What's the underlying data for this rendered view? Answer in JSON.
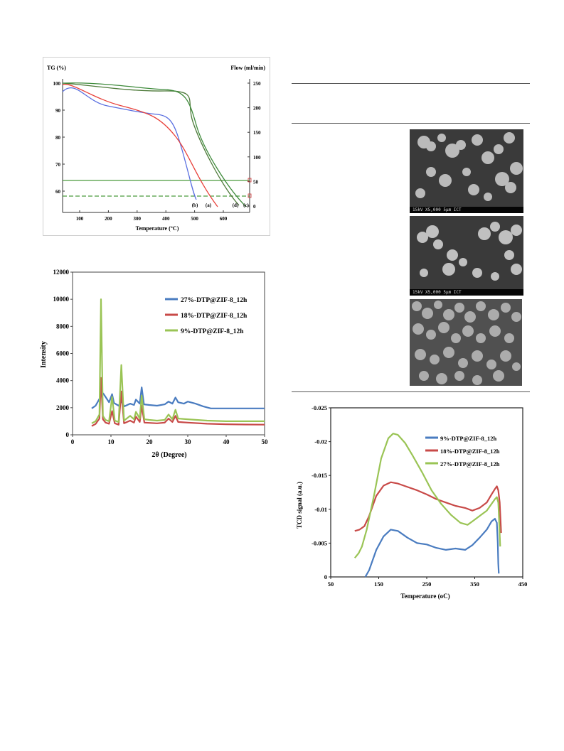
{
  "tga": {
    "y_left_label": "TG (%)",
    "y_right_label": "Flow (ml/min)",
    "xlabel": "Temperature (°C)",
    "x_ticks": [
      "100",
      "200",
      "300",
      "400",
      "500",
      "600"
    ],
    "y_left_ticks": [
      "60",
      "70",
      "80",
      "90",
      "100"
    ],
    "y_right_ticks": [
      "0",
      "50",
      "100",
      "150",
      "200",
      "250"
    ],
    "curve_labels": [
      "(b)",
      "(a)",
      "(d)",
      "(c)"
    ],
    "colors": {
      "a": "#e8413a",
      "b": "#5a6fe0",
      "c": "#3d8a3a",
      "d": "#4e7a3a",
      "flow": "#4a9a3c"
    }
  },
  "xrd": {
    "chart_data": {
      "type": "line",
      "xlabel": "2θ (Degree)",
      "ylabel": "Intensity",
      "xlim": [
        0,
        50
      ],
      "ylim": [
        0,
        12000
      ],
      "x_ticks": [
        "0",
        "10",
        "20",
        "30",
        "40",
        "50"
      ],
      "y_ticks": [
        "0",
        "2000",
        "4000",
        "6000",
        "8000",
        "10000",
        "12000"
      ],
      "series": [
        {
          "name": "27%-DTP@ZIF-8_12h",
          "color": "#4a7cc0",
          "x": [
            5,
            6,
            7,
            7.4,
            8,
            8.6,
            9.5,
            10.3,
            10.8,
            12,
            12.7,
            13.5,
            15,
            16,
            16.5,
            17.5,
            18,
            18.6,
            20,
            22,
            24,
            25,
            26,
            26.8,
            27.5,
            29,
            30,
            32,
            34,
            36,
            38,
            40,
            45,
            50
          ],
          "y": [
            1950,
            2150,
            2650,
            2950,
            3050,
            2800,
            2400,
            3000,
            2350,
            2150,
            2450,
            2100,
            2300,
            2200,
            2600,
            2300,
            3500,
            2250,
            2200,
            2150,
            2250,
            2450,
            2300,
            2750,
            2400,
            2300,
            2450,
            2300,
            2100,
            1950,
            1950,
            1950,
            1950,
            1950
          ]
        },
        {
          "name": "18%-DTP@ZIF-8_12h",
          "color": "#c84a48",
          "x": [
            5,
            6,
            7,
            7.4,
            7.9,
            8.6,
            9.5,
            10.3,
            11,
            12,
            12.7,
            13.4,
            15,
            16,
            16.5,
            17.5,
            18,
            18.7,
            20,
            22,
            24,
            25,
            26,
            26.8,
            27.5,
            30,
            35,
            40,
            45,
            50
          ],
          "y": [
            650,
            800,
            1200,
            4200,
            1150,
            900,
            820,
            1750,
            850,
            750,
            3200,
            850,
            1050,
            900,
            1350,
            950,
            2150,
            900,
            880,
            850,
            900,
            1200,
            950,
            1400,
            950,
            900,
            820,
            780,
            760,
            750
          ]
        },
        {
          "name": "9%-DTP@ZIF-8_12h",
          "color": "#9ac455",
          "x": [
            5,
            6,
            7,
            7.4,
            7.9,
            8.6,
            9.5,
            10.3,
            11,
            12,
            12.7,
            13.4,
            15,
            16,
            16.5,
            17.5,
            18,
            18.7,
            20,
            22,
            24,
            25,
            26,
            26.8,
            27.5,
            30,
            35,
            40,
            45,
            50
          ],
          "y": [
            850,
            1000,
            1500,
            10000,
            1400,
            1100,
            1000,
            2800,
            1050,
            950,
            5150,
            1050,
            1400,
            1150,
            1700,
            1200,
            2900,
            1150,
            1100,
            1050,
            1100,
            1500,
            1150,
            1850,
            1200,
            1150,
            1050,
            1000,
            1000,
            1000
          ]
        }
      ]
    }
  },
  "tpd": {
    "chart_data": {
      "type": "line",
      "xlabel": "Temperature (oC)",
      "ylabel": "TCD signal (a.u.)",
      "xlim": [
        50,
        450
      ],
      "ylim": [
        0,
        -0.025
      ],
      "x_ticks": [
        "50",
        "150",
        "250",
        "350",
        "450"
      ],
      "y_ticks": [
        "0",
        "-0.005",
        "-0.01",
        "-0.015",
        "-0.02",
        "-0.025"
      ],
      "series": [
        {
          "name": "9%-DTP@ZIF-8_12h",
          "color": "#4a7cc0",
          "x": [
            122,
            130,
            145,
            160,
            175,
            190,
            210,
            230,
            250,
            270,
            290,
            310,
            330,
            345,
            360,
            375,
            385,
            392,
            396,
            398,
            399,
            400
          ],
          "y": [
            0,
            -0.001,
            -0.004,
            -0.006,
            -0.007,
            -0.0068,
            -0.0058,
            -0.005,
            -0.0048,
            -0.0043,
            -0.004,
            -0.0042,
            -0.004,
            -0.0047,
            -0.0058,
            -0.007,
            -0.0082,
            -0.0086,
            -0.008,
            -0.005,
            -0.002,
            -0.0005
          ]
        },
        {
          "name": "18%-DTP@ZIF-8_12h",
          "color": "#c84a48",
          "x": [
            100,
            110,
            120,
            130,
            145,
            160,
            175,
            190,
            210,
            230,
            250,
            270,
            290,
            310,
            330,
            345,
            360,
            375,
            385,
            392,
            396,
            399,
            402,
            405
          ],
          "y": [
            -0.0068,
            -0.007,
            -0.0075,
            -0.009,
            -0.012,
            -0.0135,
            -0.014,
            -0.0138,
            -0.0133,
            -0.0128,
            -0.0122,
            -0.0115,
            -0.011,
            -0.0105,
            -0.0102,
            -0.0098,
            -0.0102,
            -0.011,
            -0.0122,
            -0.013,
            -0.0134,
            -0.0128,
            -0.011,
            -0.0065
          ]
        },
        {
          "name": "27%-DTP@ZIF-8_12h",
          "color": "#9ac455",
          "x": [
            100,
            108,
            115,
            125,
            140,
            155,
            170,
            180,
            190,
            205,
            220,
            240,
            260,
            280,
            300,
            320,
            335,
            345,
            360,
            375,
            385,
            392,
            396,
            399,
            401,
            403
          ],
          "y": [
            -0.0028,
            -0.0035,
            -0.0045,
            -0.007,
            -0.012,
            -0.0175,
            -0.0205,
            -0.0212,
            -0.021,
            -0.0198,
            -0.018,
            -0.0155,
            -0.0128,
            -0.0108,
            -0.0092,
            -0.008,
            -0.0077,
            -0.0082,
            -0.009,
            -0.0098,
            -0.0108,
            -0.0115,
            -0.0118,
            -0.011,
            -0.008,
            -0.0045
          ]
        }
      ]
    }
  },
  "sem": {
    "images": [
      {
        "scale": "15kV   X5,000   5µm          ICT"
      },
      {
        "scale": "15kV   X5,000   5µm          ICT"
      },
      {
        "scale": ""
      }
    ]
  }
}
